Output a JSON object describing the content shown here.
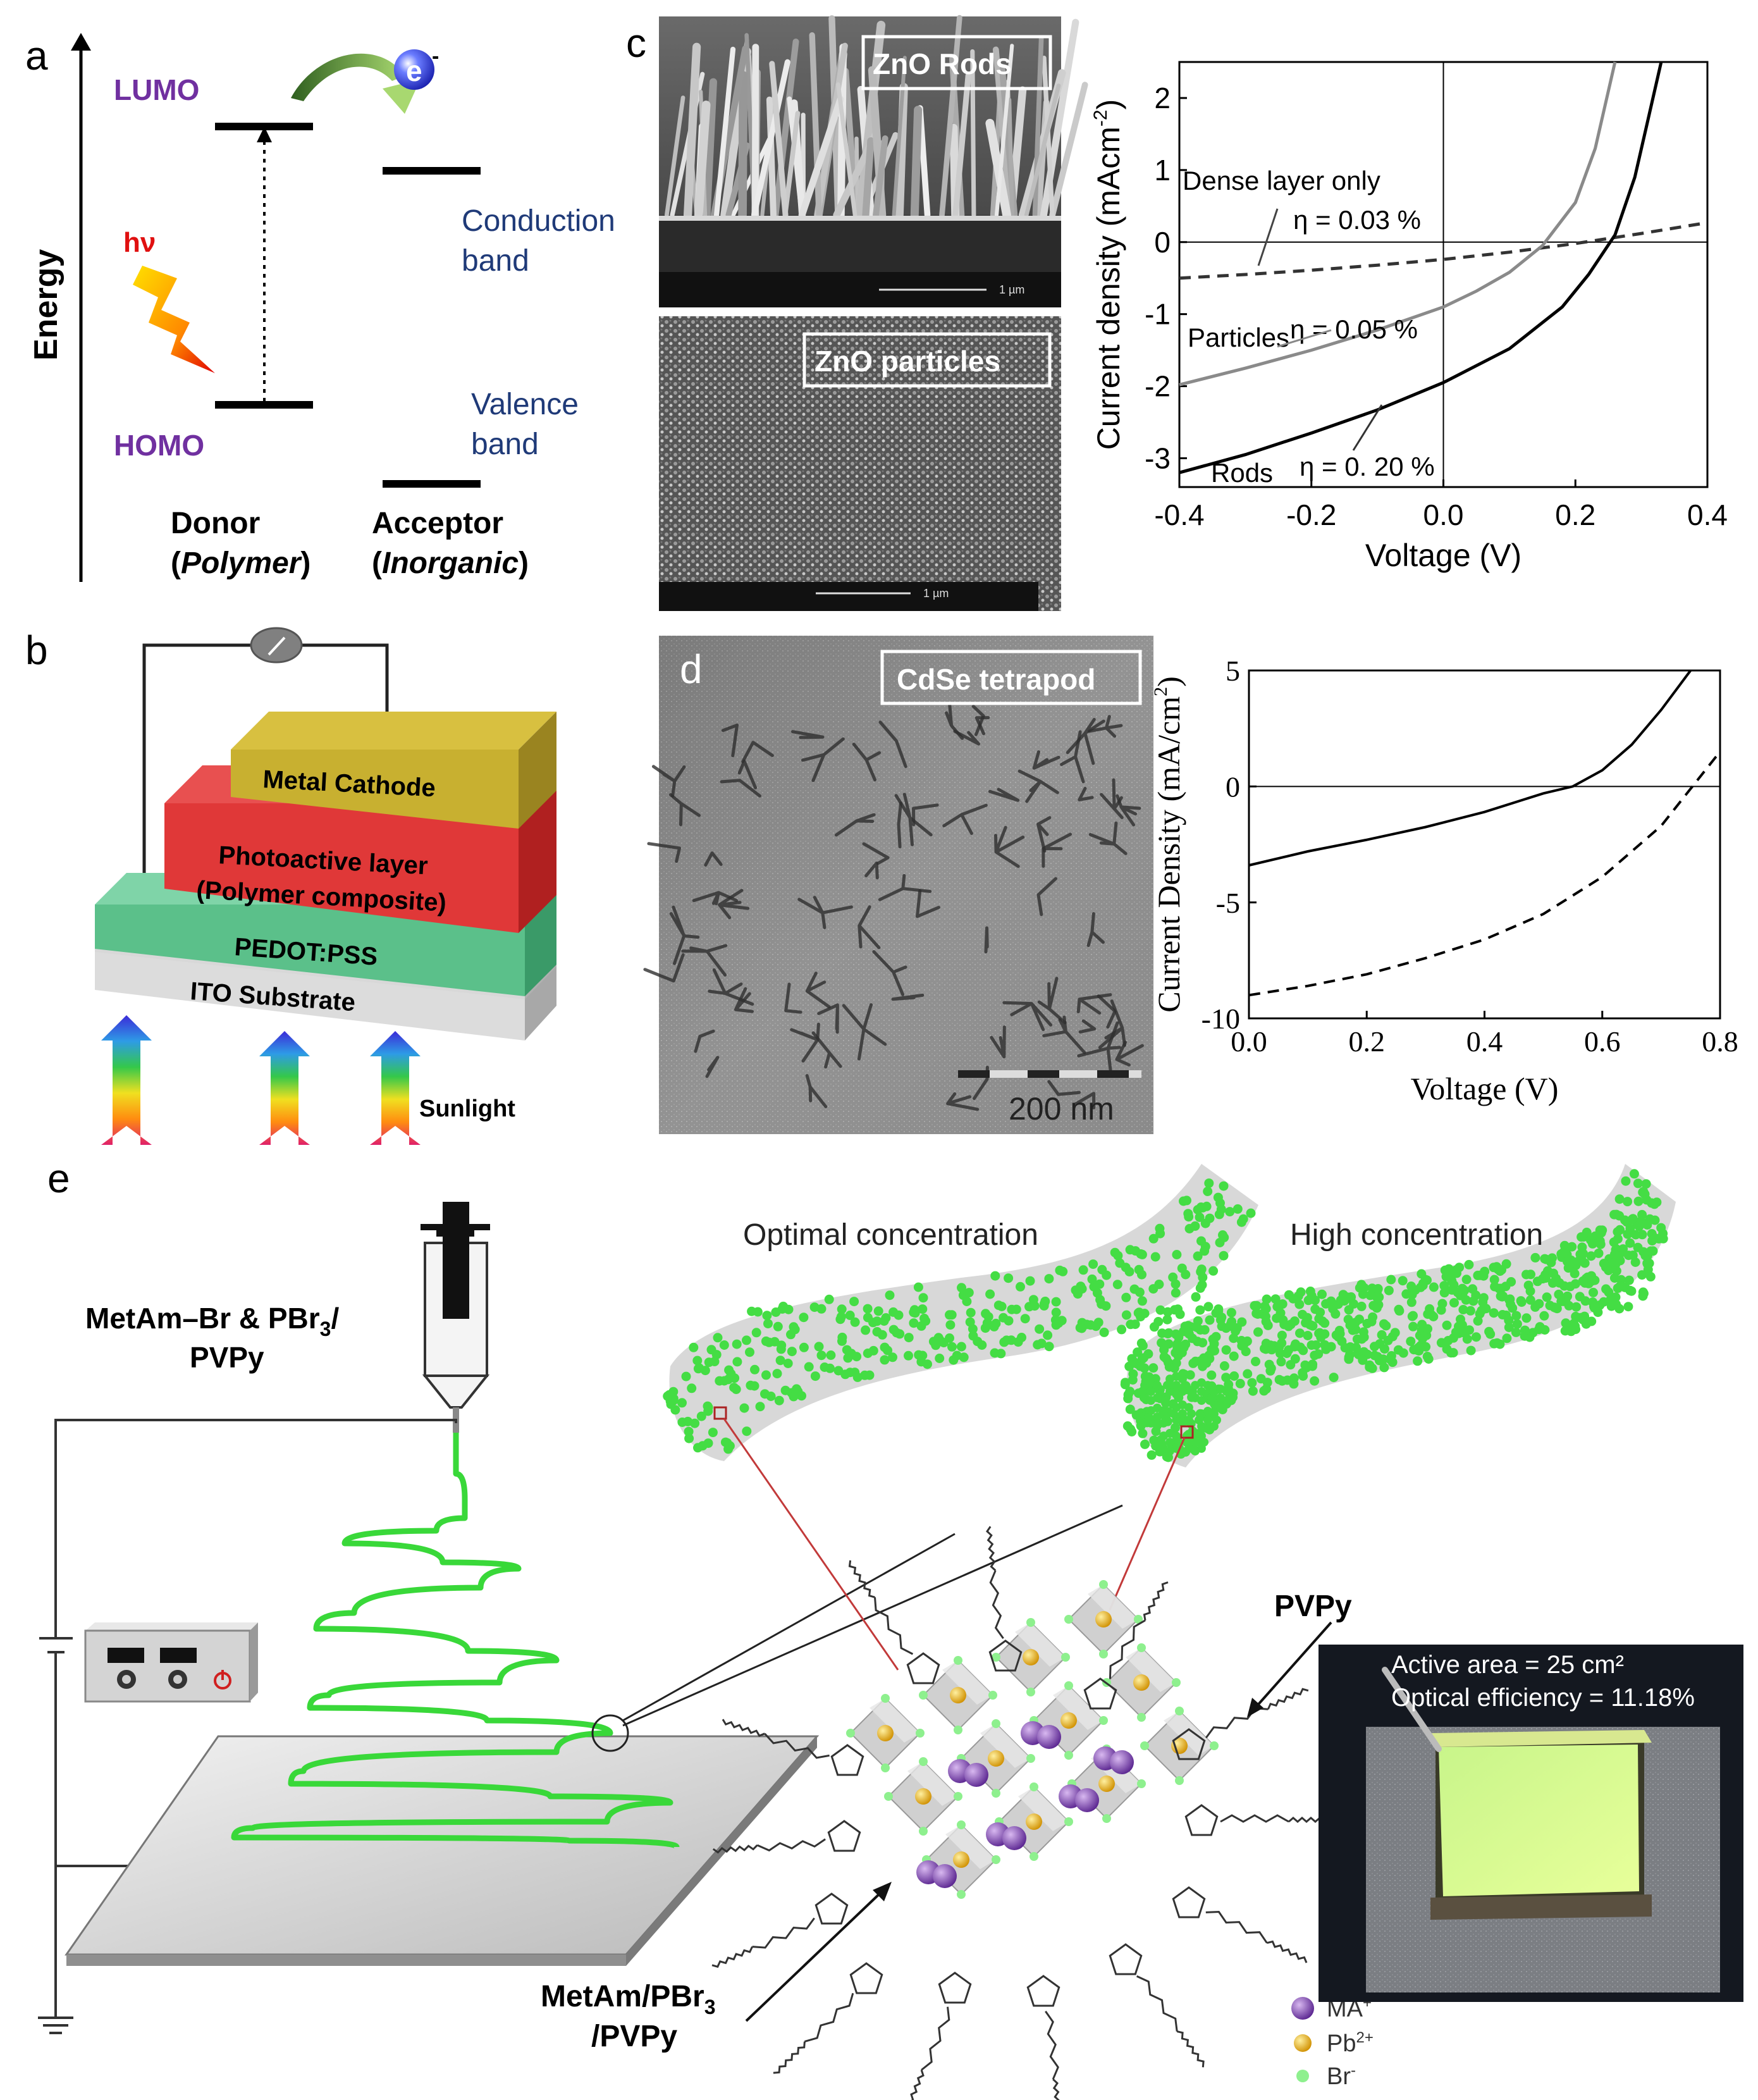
{
  "panels": {
    "a": {
      "label": "a",
      "axis_label": "Energy",
      "lumo": "LUMO",
      "homo": "HOMO",
      "photon": "hν",
      "electron": "e",
      "electron_sup": "-",
      "conduction_1": "Conduction",
      "conduction_2": "band",
      "valence_1": "Valence",
      "valence_2": "band",
      "donor_1": "Donor",
      "donor_2a": "(",
      "donor_2b": "Polymer",
      "donor_2c": ")",
      "acceptor_1": "Acceptor",
      "acceptor_2a": "(",
      "acceptor_2b": "Inorganic",
      "acceptor_2c": ")"
    },
    "b": {
      "label": "b",
      "layers": [
        "Metal Cathode",
        "Photoactive layer",
        "(Polymer composite)",
        "PEDOT:PSS",
        "ITO Substrate"
      ],
      "sunlight": "Sunlight"
    },
    "c": {
      "label": "c",
      "sem_top": "ZnO Rods",
      "sem_bottom": "ZnO particles",
      "sem_top_scale": "1 µm",
      "sem_bottom_scale": "1 µm"
    },
    "d": {
      "label": "d",
      "tem_title": "CdSe tetrapod",
      "tem_scale": "200 nm"
    },
    "e": {
      "label": "e",
      "precursor_1": "MetAm–Br & PBr",
      "precursor_1_sub": "3",
      "precursor_1_end": "/",
      "precursor_2": "PVPy",
      "optimal": "Optimal concentration",
      "high": "High concentration",
      "pvpy": "PVPy",
      "composite_1": "MetAm/PBr",
      "composite_1_sub": "3",
      "composite_2": "/PVPy",
      "active_area": "Active area = 25 cm²",
      "optical_eff": "Optical efficiency = 11.18%",
      "legend": [
        {
          "label": "MA",
          "sup": "+",
          "color": "#7b3fb0"
        },
        {
          "label": "Pb",
          "sup": "2+",
          "color": "#e8b020"
        },
        {
          "label": "Br",
          "sup": "-",
          "color": "#7ee87e"
        }
      ]
    }
  },
  "chart_data": [
    {
      "type": "line",
      "xlabel": "Voltage (V)",
      "ylabel": "Current density (mAcm",
      "ylabel_sup": "-2",
      "ylabel_end": ")",
      "xlim": [
        -0.4,
        0.4
      ],
      "ylim": [
        -3.4,
        2.5
      ],
      "x_ticks": [
        "-0.4",
        "-0.2",
        "0.0",
        "0.2",
        "0.4"
      ],
      "y_ticks": [
        "-3",
        "-2",
        "-1",
        "0",
        "1",
        "2"
      ],
      "series": [
        {
          "name": "Dense layer only",
          "eta": "η = 0.03 %",
          "style": "dashed",
          "color": "#333333",
          "points": [
            [
              -0.4,
              -0.5
            ],
            [
              -0.3,
              -0.45
            ],
            [
              -0.2,
              -0.39
            ],
            [
              -0.1,
              -0.32
            ],
            [
              0.0,
              -0.24
            ],
            [
              0.1,
              -0.14
            ],
            [
              0.2,
              -0.02
            ],
            [
              0.3,
              0.12
            ],
            [
              0.4,
              0.27
            ]
          ]
        },
        {
          "name": "Particles",
          "eta": "η = 0.05 %",
          "style": "solid",
          "color": "#8a8a8a",
          "points": [
            [
              -0.4,
              -1.98
            ],
            [
              -0.3,
              -1.75
            ],
            [
              -0.2,
              -1.5
            ],
            [
              -0.1,
              -1.22
            ],
            [
              0.0,
              -0.9
            ],
            [
              0.05,
              -0.68
            ],
            [
              0.1,
              -0.42
            ],
            [
              0.15,
              -0.05
            ],
            [
              0.2,
              0.55
            ],
            [
              0.23,
              1.3
            ],
            [
              0.26,
              2.5
            ]
          ]
        },
        {
          "name": "Rods",
          "eta": "η = 0. 20 %",
          "style": "solid",
          "color": "#000000",
          "points": [
            [
              -0.4,
              -3.2
            ],
            [
              -0.3,
              -2.95
            ],
            [
              -0.2,
              -2.65
            ],
            [
              -0.1,
              -2.33
            ],
            [
              0.0,
              -1.95
            ],
            [
              0.1,
              -1.48
            ],
            [
              0.18,
              -0.9
            ],
            [
              0.22,
              -0.45
            ],
            [
              0.26,
              0.1
            ],
            [
              0.29,
              0.9
            ],
            [
              0.31,
              1.7
            ],
            [
              0.33,
              2.5
            ]
          ]
        }
      ]
    },
    {
      "type": "line",
      "xlabel": "Voltage (V)",
      "ylabel": "Current Density (mA/cm",
      "ylabel_sup": "2",
      "ylabel_end": ")",
      "xlim": [
        0.0,
        0.8
      ],
      "ylim": [
        -10,
        5
      ],
      "x_ticks": [
        "0.0",
        "0.2",
        "0.4",
        "0.6",
        "0.8"
      ],
      "y_ticks": [
        "-10",
        "-5",
        "0",
        "5"
      ],
      "series": [
        {
          "style": "solid",
          "color": "#000000",
          "points": [
            [
              0.0,
              -3.4
            ],
            [
              0.1,
              -2.8
            ],
            [
              0.2,
              -2.3
            ],
            [
              0.3,
              -1.75
            ],
            [
              0.4,
              -1.1
            ],
            [
              0.5,
              -0.3
            ],
            [
              0.55,
              0.0
            ],
            [
              0.6,
              0.7
            ],
            [
              0.65,
              1.8
            ],
            [
              0.7,
              3.3
            ],
            [
              0.75,
              5.0
            ]
          ]
        },
        {
          "style": "dashed",
          "color": "#000000",
          "points": [
            [
              0.0,
              -9.0
            ],
            [
              0.1,
              -8.6
            ],
            [
              0.2,
              -8.1
            ],
            [
              0.3,
              -7.4
            ],
            [
              0.4,
              -6.6
            ],
            [
              0.5,
              -5.5
            ],
            [
              0.6,
              -3.9
            ],
            [
              0.7,
              -1.7
            ],
            [
              0.75,
              -0.1
            ],
            [
              0.8,
              1.5
            ]
          ]
        }
      ]
    }
  ]
}
